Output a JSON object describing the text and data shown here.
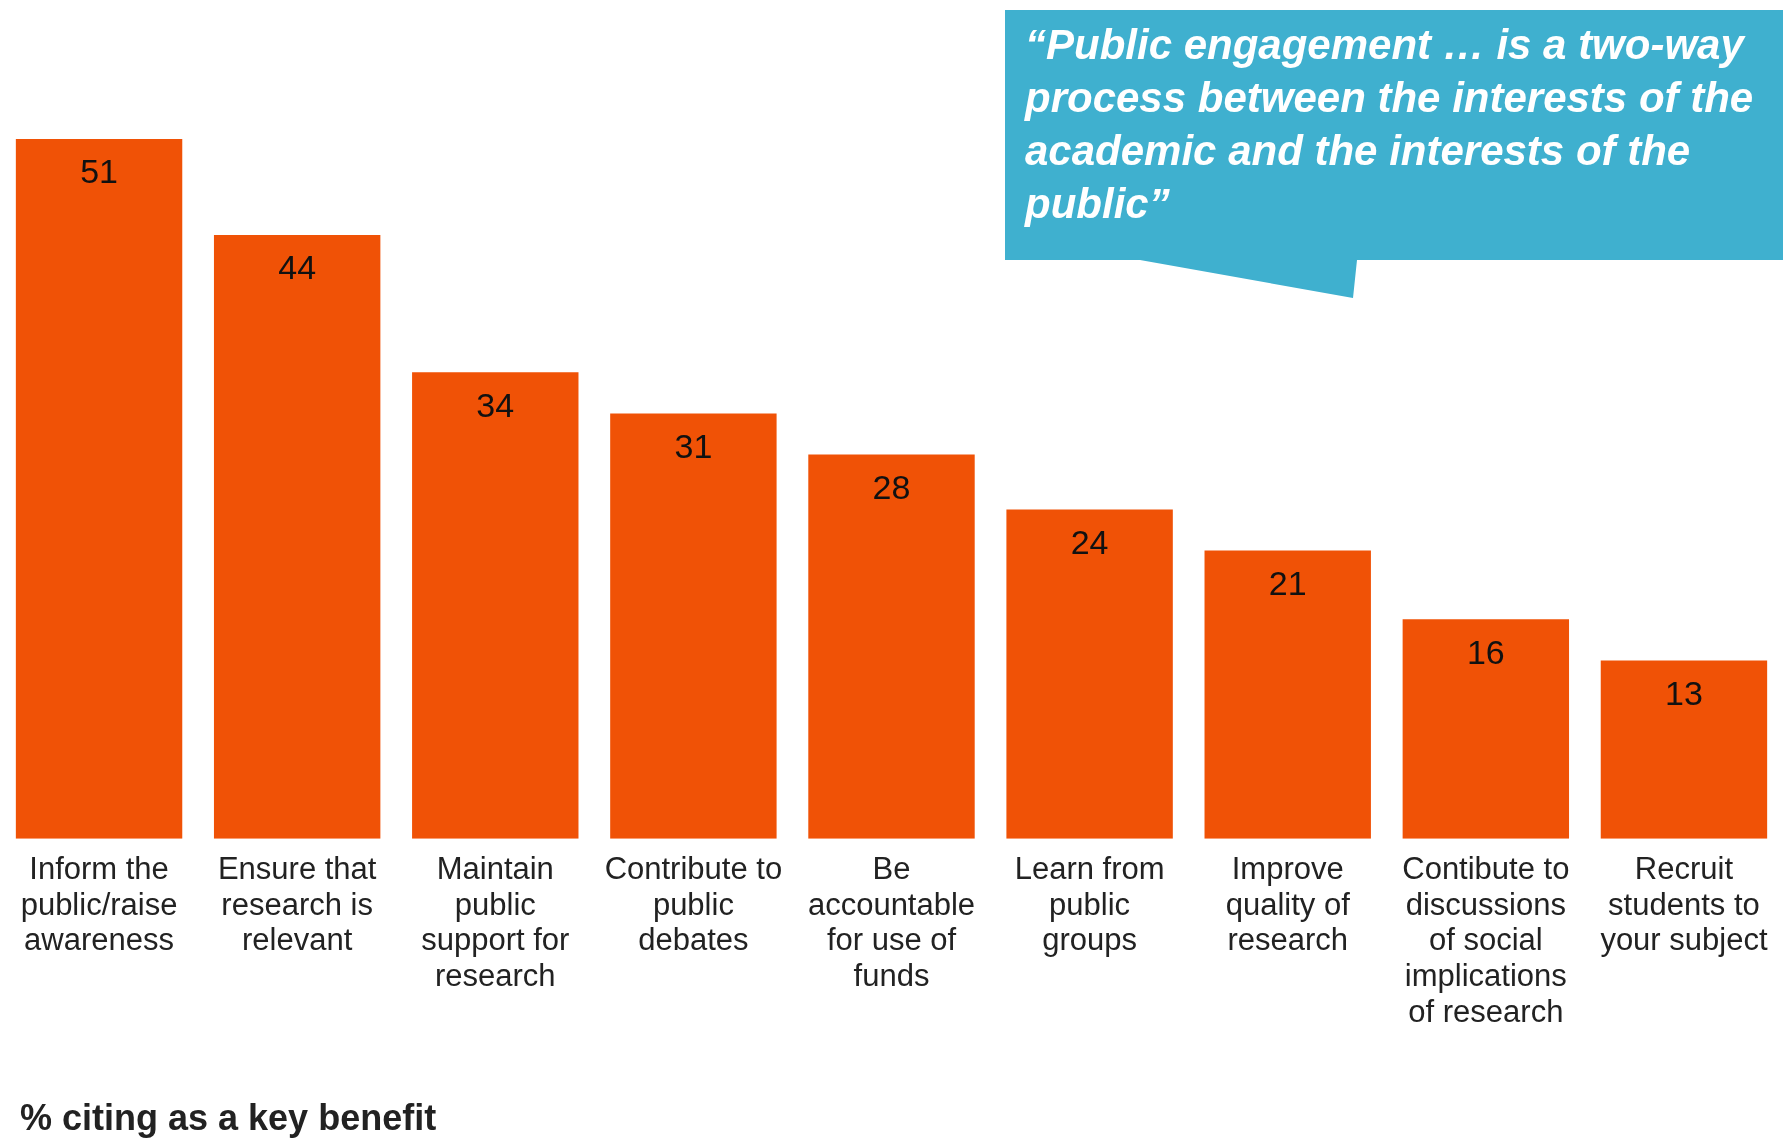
{
  "chart_data": {
    "type": "bar",
    "title": "% citing as a key benefit",
    "categories": [
      "Inform the public/raise awareness",
      "Ensure that research is relevant",
      "Maintain public support for research",
      "Contribute to public debates",
      "Be accountable for use of funds",
      "Learn from public groups",
      "Improve quality of research",
      "Contibute to discussions of social implications of research",
      "Recruit students to your subject"
    ],
    "values": [
      51,
      44,
      34,
      31,
      28,
      24,
      21,
      16,
      13
    ],
    "color": "#f05206",
    "data_labels": true,
    "grid": false,
    "legend": false,
    "annotations": [
      "“Public engagement … is a two-way process between the interests of the academic and the interests of the public”"
    ]
  }
}
